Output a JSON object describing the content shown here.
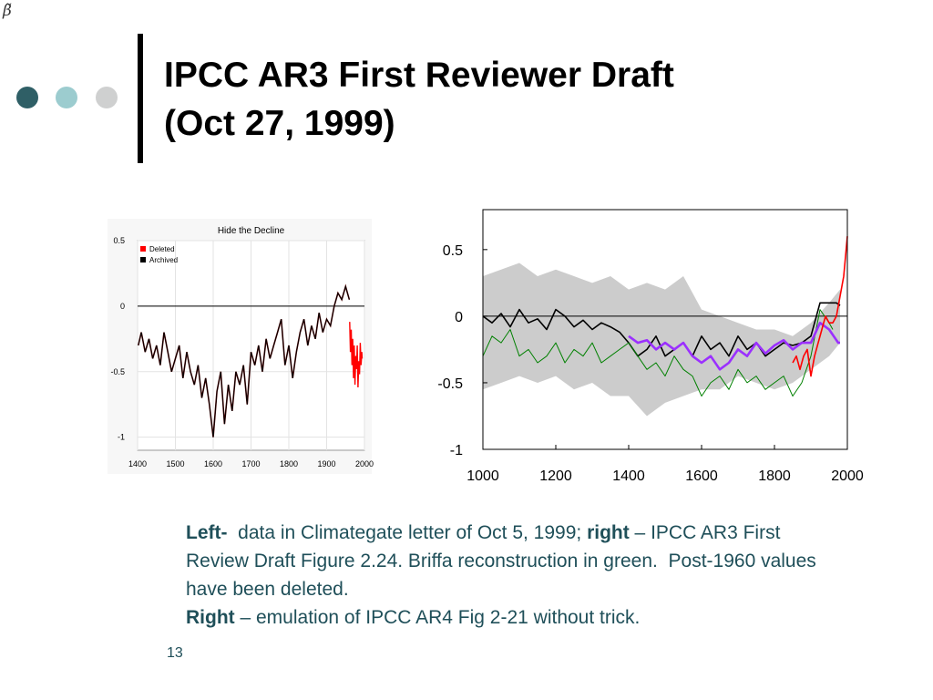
{
  "slide": {
    "corner_mark": "β̃",
    "title_line1": "IPCC AR3 First Reviewer Draft",
    "title_line2": "(Oct 27, 1999)",
    "page_number": "13",
    "colors": {
      "dot_dark": "#2f5f66",
      "dot_light": "#9ccccf",
      "dot_grey": "#cfd0d0",
      "caption_text": "#1f4f59"
    }
  },
  "caption": {
    "p1_bold1": "Left-",
    "p1_text1": "  data in Climategate letter of Oct 5, 1999; ",
    "p1_bold2": "right",
    "p1_text2": " – IPCC AR3 First Review Draft Figure 2.24. Briffa reconstruction in green.  Post-1960 values have been deleted.",
    "p2_bold": "Right",
    "p2_text": " – emulation of IPCC AR4 Fig 2-21 without trick."
  },
  "chart_data": [
    {
      "type": "line",
      "title": "Hide the Decline",
      "xlabel": "",
      "ylabel": "",
      "xlim": [
        1400,
        2000
      ],
      "ylim": [
        -1.1,
        0.5
      ],
      "x_ticks": [
        "1400",
        "1500",
        "1600",
        "1700",
        "1800",
        "1900",
        "2000"
      ],
      "y_ticks": [
        "0.5",
        "0",
        "-0.5",
        "-1"
      ],
      "grid": true,
      "legend": "top-left",
      "series": [
        {
          "name": "Deleted",
          "color": "#ff0000",
          "x": [
            1961,
            1963,
            1965,
            1967,
            1969,
            1971,
            1973,
            1975,
            1977,
            1979,
            1981,
            1983,
            1985,
            1987,
            1989,
            1991,
            1993,
            1994
          ],
          "y": [
            -0.12,
            -0.35,
            -0.18,
            -0.45,
            -0.25,
            -0.55,
            -0.3,
            -0.6,
            -0.38,
            -0.48,
            -0.3,
            -0.62,
            -0.42,
            -0.52,
            -0.28,
            -0.45,
            -0.35,
            -0.4
          ]
        },
        {
          "name": "Archived",
          "color": "#000000",
          "x": [
            1402,
            1410,
            1420,
            1430,
            1440,
            1450,
            1460,
            1470,
            1480,
            1490,
            1500,
            1510,
            1520,
            1530,
            1540,
            1550,
            1560,
            1570,
            1580,
            1590,
            1600,
            1610,
            1620,
            1630,
            1640,
            1650,
            1660,
            1670,
            1680,
            1690,
            1700,
            1710,
            1720,
            1730,
            1740,
            1750,
            1760,
            1770,
            1780,
            1790,
            1800,
            1810,
            1820,
            1830,
            1840,
            1850,
            1860,
            1870,
            1880,
            1890,
            1900,
            1910,
            1920,
            1930,
            1940,
            1950,
            1960
          ],
          "y": [
            -0.3,
            -0.2,
            -0.35,
            -0.25,
            -0.4,
            -0.3,
            -0.45,
            -0.2,
            -0.35,
            -0.5,
            -0.4,
            -0.3,
            -0.55,
            -0.35,
            -0.5,
            -0.6,
            -0.45,
            -0.7,
            -0.55,
            -0.75,
            -1.0,
            -0.65,
            -0.5,
            -0.9,
            -0.6,
            -0.8,
            -0.5,
            -0.6,
            -0.45,
            -0.75,
            -0.35,
            -0.45,
            -0.3,
            -0.5,
            -0.25,
            -0.4,
            -0.3,
            -0.2,
            -0.1,
            -0.45,
            -0.3,
            -0.55,
            -0.35,
            -0.2,
            -0.1,
            -0.3,
            -0.15,
            -0.25,
            -0.05,
            -0.2,
            -0.1,
            -0.15,
            0.0,
            0.1,
            0.05,
            0.15,
            0.05
          ]
        }
      ]
    },
    {
      "type": "line",
      "title": "",
      "xlabel": "",
      "ylabel": "",
      "xlim": [
        1000,
        2000
      ],
      "ylim": [
        -1,
        0.8
      ],
      "x_ticks": [
        "1000",
        "1200",
        "1400",
        "1600",
        "1800",
        "2000"
      ],
      "y_ticks": [
        "0.5",
        "0",
        "-0.5",
        "-1"
      ],
      "grid": false,
      "legend": "none",
      "uncertainty_band": {
        "color": "#cccccc",
        "x": [
          1000,
          1050,
          1100,
          1150,
          1200,
          1250,
          1300,
          1350,
          1400,
          1450,
          1500,
          1550,
          1600,
          1650,
          1700,
          1750,
          1800,
          1850,
          1900,
          1950,
          1980
        ],
        "upper": [
          0.3,
          0.35,
          0.4,
          0.3,
          0.35,
          0.3,
          0.25,
          0.3,
          0.2,
          0.25,
          0.2,
          0.3,
          0.05,
          0.0,
          -0.05,
          -0.1,
          -0.1,
          -0.15,
          -0.05,
          0.1,
          0.2
        ],
        "lower": [
          -0.55,
          -0.5,
          -0.45,
          -0.5,
          -0.45,
          -0.55,
          -0.5,
          -0.6,
          -0.6,
          -0.75,
          -0.65,
          -0.6,
          -0.55,
          -0.55,
          -0.45,
          -0.5,
          -0.55,
          -0.5,
          -0.4,
          -0.3,
          -0.2
        ]
      },
      "series": [
        {
          "color": "#000000",
          "x": [
            1000,
            1025,
            1050,
            1075,
            1100,
            1125,
            1150,
            1175,
            1200,
            1225,
            1250,
            1275,
            1300,
            1325,
            1350,
            1375,
            1400,
            1425,
            1450,
            1475,
            1500,
            1525,
            1550,
            1575,
            1600,
            1625,
            1650,
            1675,
            1700,
            1725,
            1750,
            1775,
            1800,
            1825,
            1850,
            1875,
            1900,
            1925,
            1950,
            1970,
            1980
          ],
          "y": [
            0.0,
            -0.05,
            0.02,
            -0.08,
            0.05,
            -0.05,
            -0.02,
            -0.1,
            0.05,
            0.0,
            -0.08,
            -0.03,
            -0.1,
            -0.05,
            -0.08,
            -0.12,
            -0.2,
            -0.3,
            -0.25,
            -0.15,
            -0.3,
            -0.25,
            -0.2,
            -0.3,
            -0.15,
            -0.25,
            -0.2,
            -0.3,
            -0.15,
            -0.25,
            -0.2,
            -0.3,
            -0.25,
            -0.2,
            -0.22,
            -0.2,
            -0.15,
            0.1,
            0.1,
            0.1,
            0.08
          ]
        },
        {
          "color": "#008000",
          "x": [
            1000,
            1025,
            1050,
            1075,
            1100,
            1125,
            1150,
            1175,
            1200,
            1225,
            1250,
            1275,
            1300,
            1325,
            1350,
            1375,
            1400,
            1425,
            1450,
            1475,
            1500,
            1525,
            1550,
            1575,
            1600,
            1625,
            1650,
            1675,
            1700,
            1725,
            1750,
            1775,
            1800,
            1825,
            1850,
            1875,
            1900,
            1925,
            1950,
            1960
          ],
          "y": [
            -0.3,
            -0.15,
            -0.2,
            -0.1,
            -0.3,
            -0.25,
            -0.35,
            -0.3,
            -0.2,
            -0.35,
            -0.25,
            -0.3,
            -0.2,
            -0.35,
            -0.3,
            -0.25,
            -0.2,
            -0.3,
            -0.4,
            -0.35,
            -0.45,
            -0.3,
            -0.4,
            -0.45,
            -0.6,
            -0.5,
            -0.45,
            -0.55,
            -0.4,
            -0.5,
            -0.45,
            -0.55,
            -0.5,
            -0.45,
            -0.6,
            -0.5,
            -0.3,
            0.05,
            -0.05,
            -0.1
          ]
        },
        {
          "color": "#9b30ff",
          "x": [
            1400,
            1425,
            1450,
            1475,
            1500,
            1525,
            1550,
            1575,
            1600,
            1625,
            1650,
            1675,
            1700,
            1725,
            1750,
            1775,
            1800,
            1825,
            1850,
            1875,
            1900,
            1925,
            1950,
            1975,
            1980
          ],
          "y": [
            -0.15,
            -0.2,
            -0.18,
            -0.25,
            -0.2,
            -0.25,
            -0.2,
            -0.3,
            -0.35,
            -0.3,
            -0.4,
            -0.35,
            -0.25,
            -0.3,
            -0.2,
            -0.28,
            -0.22,
            -0.18,
            -0.25,
            -0.2,
            -0.2,
            -0.05,
            -0.1,
            -0.2,
            -0.2
          ]
        },
        {
          "color": "#ff0000",
          "x": [
            1850,
            1860,
            1870,
            1880,
            1890,
            1900,
            1910,
            1920,
            1930,
            1940,
            1950,
            1960,
            1970,
            1980,
            1990,
            2000
          ],
          "y": [
            -0.35,
            -0.3,
            -0.4,
            -0.3,
            -0.25,
            -0.45,
            -0.3,
            -0.2,
            -0.1,
            0.0,
            -0.05,
            -0.05,
            0.0,
            0.15,
            0.3,
            0.6
          ]
        }
      ]
    }
  ]
}
